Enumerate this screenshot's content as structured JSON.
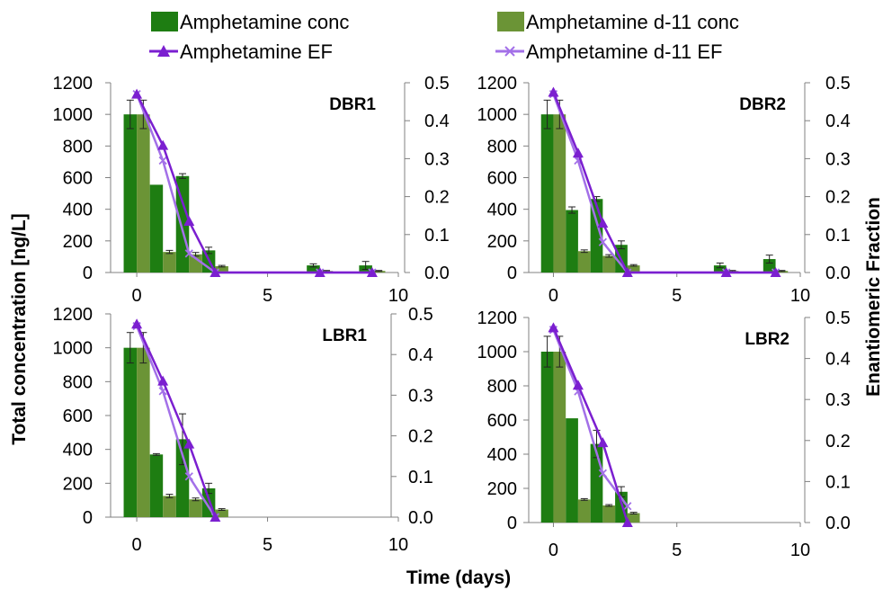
{
  "legend": [
    {
      "label": "Amphetamine conc",
      "kind": "bar",
      "color": "#1e7d12"
    },
    {
      "label": "Amphetamine d-11 conc",
      "kind": "bar",
      "color": "#6b9436"
    },
    {
      "label": "Amphetamine EF",
      "kind": "line",
      "marker": "triangle",
      "color": "#7b1fd0"
    },
    {
      "label": "Amphetamine d-11 EF",
      "kind": "line",
      "marker": "x",
      "color": "#a370e8"
    }
  ],
  "y_axis_label": "Total concentration [ng/L]",
  "y2_axis_label": "Enantiomeric Fraction",
  "x_axis_label": "Time (days)",
  "colors": {
    "amph_bar": "#1e7d12",
    "d11_bar": "#6b9436",
    "amph_ef": "#7b1fd0",
    "d11_ef": "#a370e8"
  },
  "chart_data": [
    {
      "type": "bar",
      "title": "DBR1",
      "xlim": [
        -1,
        10
      ],
      "xticks": [
        0,
        5,
        10
      ],
      "ylim": [
        0,
        1200
      ],
      "yticks": [
        0,
        200,
        400,
        600,
        800,
        1000,
        1200
      ],
      "y2lim": [
        0,
        0.5
      ],
      "y2ticks": [
        "0.0",
        "0.1",
        "0.2",
        "0.3",
        "0.4",
        "0.5"
      ],
      "x": [
        0,
        1,
        2,
        3,
        7,
        9
      ],
      "series": [
        {
          "name": "Amphetamine conc",
          "values": [
            1000,
            555,
            610,
            140,
            45,
            45
          ],
          "errors": [
            90,
            0,
            15,
            20,
            10,
            25
          ]
        },
        {
          "name": "Amphetamine d-11 conc",
          "values": [
            1000,
            130,
            115,
            40,
            10,
            10
          ],
          "errors": [
            90,
            10,
            12,
            5,
            3,
            3
          ]
        },
        {
          "name": "Amphetamine EF",
          "x": [
            0,
            1,
            2,
            3,
            7,
            9
          ],
          "values": [
            0.47,
            0.335,
            0.135,
            0.0,
            0.0,
            0.0
          ]
        },
        {
          "name": "Amphetamine d-11 EF",
          "x": [
            0,
            1,
            2,
            3,
            7,
            9
          ],
          "values": [
            0.47,
            0.295,
            0.05,
            0.0,
            0.0,
            0.0
          ]
        }
      ]
    },
    {
      "type": "bar",
      "title": "DBR2",
      "xlim": [
        -1,
        10
      ],
      "xticks": [
        0,
        5,
        10
      ],
      "ylim": [
        0,
        1200
      ],
      "yticks": [
        0,
        200,
        400,
        600,
        800,
        1000,
        1200
      ],
      "y2lim": [
        0,
        0.5
      ],
      "y2ticks": [
        "0.0",
        "0.1",
        "0.2",
        "0.3",
        "0.4",
        "0.5"
      ],
      "x": [
        0,
        1,
        2,
        3,
        7,
        9
      ],
      "series": [
        {
          "name": "Amphetamine conc",
          "values": [
            1000,
            395,
            465,
            175,
            45,
            85
          ],
          "errors": [
            90,
            20,
            15,
            25,
            15,
            25
          ]
        },
        {
          "name": "Amphetamine d-11 conc",
          "values": [
            1000,
            135,
            105,
            45,
            10,
            10
          ],
          "errors": [
            90,
            8,
            8,
            5,
            3,
            3
          ]
        },
        {
          "name": "Amphetamine EF",
          "x": [
            0,
            1,
            2,
            3,
            7,
            9
          ],
          "values": [
            0.475,
            0.315,
            0.13,
            0.0,
            0.0,
            0.0
          ]
        },
        {
          "name": "Amphetamine d-11 EF",
          "x": [
            0,
            1,
            2,
            3,
            7,
            9
          ],
          "values": [
            0.47,
            0.295,
            0.08,
            0.0,
            0.0,
            0.0
          ]
        }
      ]
    },
    {
      "type": "bar",
      "title": "LBR1",
      "xlim": [
        -1,
        10
      ],
      "xticks": [
        0,
        5,
        10
      ],
      "ylim": [
        0,
        1200
      ],
      "yticks": [
        0,
        200,
        400,
        600,
        800,
        1000,
        1200
      ],
      "y2lim": [
        0,
        0.5
      ],
      "y2ticks": [
        "0.0",
        "0.1",
        "0.2",
        "0.3",
        "0.4",
        "0.5"
      ],
      "x": [
        0,
        1,
        2,
        3
      ],
      "series": [
        {
          "name": "Amphetamine conc",
          "values": [
            1000,
            370,
            460,
            170
          ],
          "errors": [
            90,
            5,
            150,
            30
          ]
        },
        {
          "name": "Amphetamine d-11 conc",
          "values": [
            1000,
            125,
            105,
            45
          ],
          "errors": [
            90,
            10,
            8,
            5
          ]
        },
        {
          "name": "Amphetamine EF",
          "x": [
            0,
            1,
            2,
            3
          ],
          "values": [
            0.475,
            0.335,
            0.18,
            0.0
          ]
        },
        {
          "name": "Amphetamine d-11 EF",
          "x": [
            0,
            1,
            2,
            3
          ],
          "values": [
            0.47,
            0.31,
            0.1,
            0.0
          ]
        }
      ]
    },
    {
      "type": "bar",
      "title": "LBR2",
      "xlim": [
        -1,
        10
      ],
      "xticks": [
        0,
        5,
        10
      ],
      "ylim": [
        0,
        1200
      ],
      "yticks": [
        0,
        200,
        400,
        600,
        800,
        1000,
        1200
      ],
      "y2lim": [
        0,
        0.5
      ],
      "y2ticks": [
        "0.0",
        "0.1",
        "0.2",
        "0.3",
        "0.4",
        "0.5"
      ],
      "x": [
        0,
        1,
        2,
        3
      ],
      "series": [
        {
          "name": "Amphetamine conc",
          "values": [
            1000,
            610,
            460,
            180
          ],
          "errors": [
            90,
            0,
            80,
            30
          ]
        },
        {
          "name": "Amphetamine d-11 conc",
          "values": [
            1000,
            135,
            100,
            55
          ],
          "errors": [
            90,
            5,
            5,
            5
          ]
        },
        {
          "name": "Amphetamine EF",
          "x": [
            0,
            1,
            2,
            3
          ],
          "values": [
            0.475,
            0.335,
            0.195,
            0.0
          ]
        },
        {
          "name": "Amphetamine d-11 EF",
          "x": [
            0,
            1,
            2,
            3
          ],
          "values": [
            0.47,
            0.32,
            0.12,
            0.04
          ]
        }
      ]
    }
  ]
}
